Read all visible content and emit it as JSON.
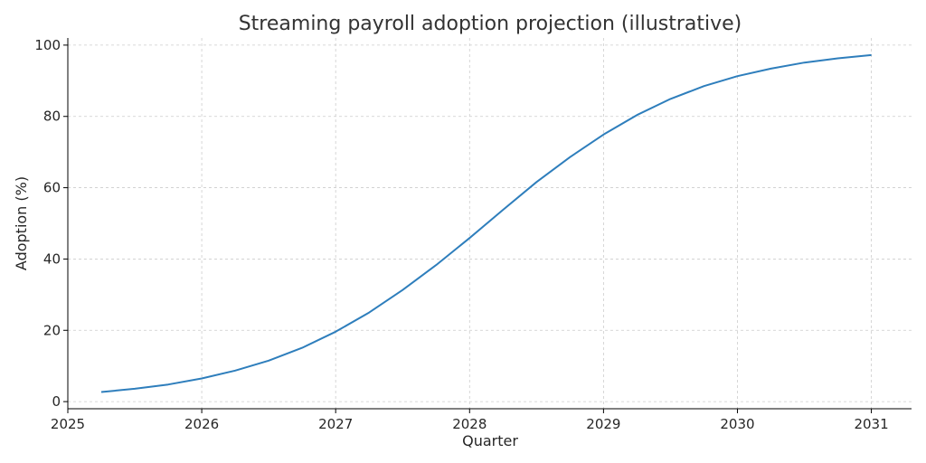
{
  "chart_data": {
    "type": "line",
    "title": "Streaming payroll adoption projection (illustrative)",
    "xlabel": "Quarter",
    "ylabel": "Adoption (%)",
    "xlim": [
      2025,
      2031.3
    ],
    "ylim": [
      -2,
      102
    ],
    "x_ticks": [
      2025,
      2026,
      2027,
      2028,
      2029,
      2030,
      2031
    ],
    "x_tick_labels": [
      "2025",
      "2026",
      "2027",
      "2028",
      "2029",
      "2030",
      "2031"
    ],
    "y_ticks": [
      0,
      20,
      40,
      60,
      80,
      100
    ],
    "y_tick_labels": [
      "0",
      "20",
      "40",
      "60",
      "80",
      "100"
    ],
    "grid": true,
    "color": "#2e7ebc",
    "series": [
      {
        "x": [
          2025.25,
          2025.5,
          2025.75,
          2026.0,
          2026.25,
          2026.5,
          2026.75,
          2027.0,
          2027.25,
          2027.5,
          2027.75,
          2028.0,
          2028.25,
          2028.5,
          2028.75,
          2029.0,
          2029.25,
          2029.5,
          2029.75,
          2030.0,
          2030.25,
          2030.5,
          2030.75,
          2031.0
        ],
        "y": [
          2.7,
          3.6,
          4.8,
          6.5,
          8.7,
          11.5,
          15.1,
          19.6,
          25.0,
          31.3,
          38.3,
          45.9,
          53.8,
          61.6,
          68.6,
          74.9,
          80.4,
          84.9,
          88.5,
          91.3,
          93.4,
          95.1,
          96.3,
          97.2
        ]
      }
    ]
  }
}
